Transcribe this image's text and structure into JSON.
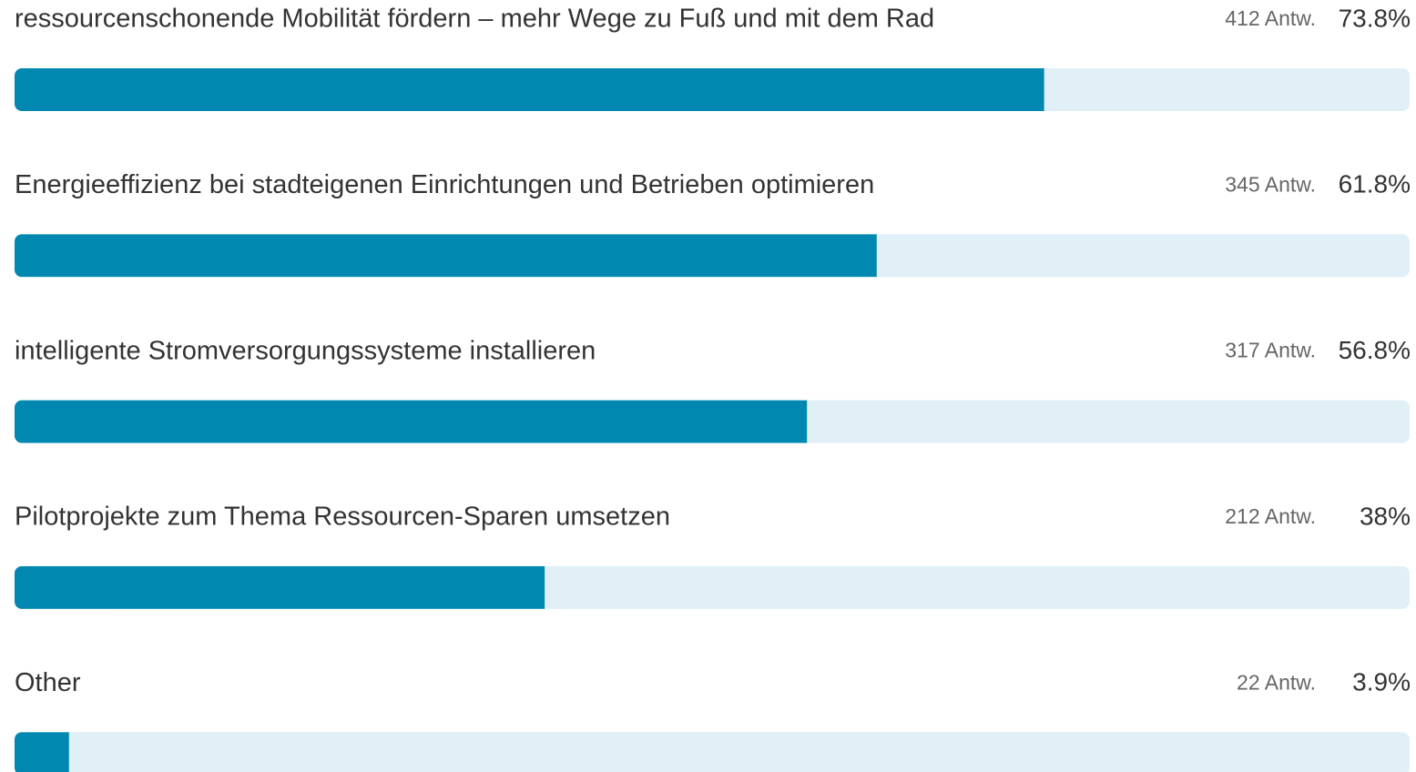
{
  "chart_data": {
    "type": "bar",
    "orientation": "horizontal",
    "categories": [
      "ressourcenschonende Mobilität fördern – mehr Wege zu Fuß und mit dem Rad",
      "Energieeffizienz bei stadteigenen Einrichtungen und Betrieben optimieren",
      "intelligente Stromversorgungssysteme installieren",
      "Pilotprojekte zum Thema Ressourcen-Sparen umsetzen",
      "Other"
    ],
    "values": [
      73.8,
      61.8,
      56.8,
      38,
      3.9
    ],
    "value_labels": [
      "73.8%",
      "61.8%",
      "56.8%",
      "38%",
      "3.9%"
    ],
    "count_labels": [
      "412 Antw.",
      "345 Antw.",
      "317 Antw.",
      "212 Antw.",
      "22 Antw."
    ],
    "color": "#0088b1",
    "track_color": "#e1f0f6",
    "xlim": [
      0,
      100
    ]
  }
}
